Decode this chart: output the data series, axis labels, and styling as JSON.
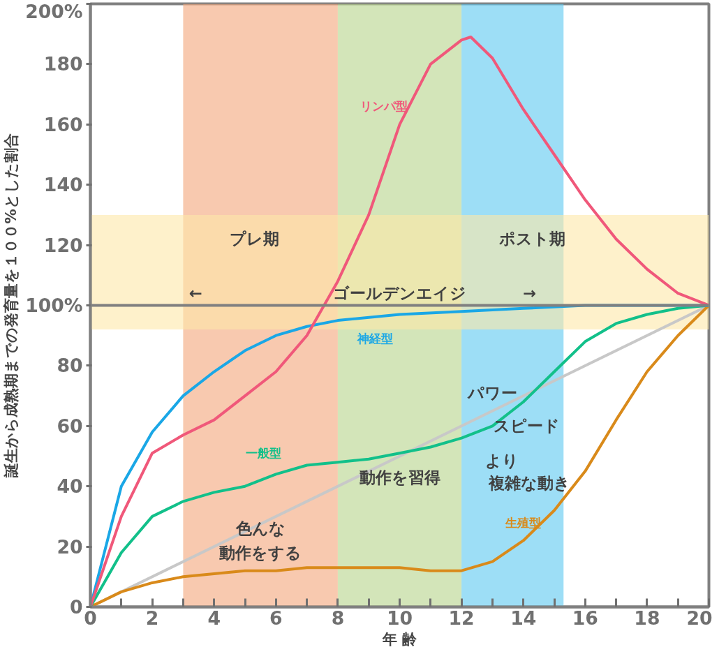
{
  "chart_data": {
    "type": "line",
    "xlabel": "年 齢",
    "ylabel": "誕生から成熟期までの発育量を１００%とした割合",
    "xlim": [
      0,
      20
    ],
    "ylim": [
      0,
      200
    ],
    "xticks": [
      0,
      {
        "value": 1,
        "label": null
      },
      2,
      {
        "value": 3,
        "label": null
      },
      4,
      {
        "value": 5,
        "label": null
      },
      6,
      {
        "value": 7,
        "label": null
      },
      8,
      {
        "value": 9,
        "label": null
      },
      10,
      {
        "value": 11,
        "label": null
      },
      12,
      {
        "value": 13,
        "label": null
      },
      14,
      {
        "value": 15,
        "label": null
      },
      16,
      {
        "value": 17,
        "label": null
      },
      18,
      {
        "value": 19,
        "label": null
      },
      20
    ],
    "yticks": [
      0,
      20,
      40,
      60,
      80,
      {
        "value": 100,
        "label": "100%"
      },
      120,
      140,
      160,
      180,
      {
        "value": 200,
        "label": "200%"
      }
    ],
    "grid": false,
    "legend": false,
    "marker": "none",
    "line_style": "solid",
    "series": [
      {
        "color": "#c8c8c8",
        "x": [
          0,
          20
        ],
        "values": [
          0,
          100
        ]
      },
      {
        "name": "生殖型",
        "color": "#d98a1a",
        "x": [
          0,
          1,
          2,
          3,
          4,
          5,
          6,
          7,
          8,
          9,
          10,
          11,
          12,
          13,
          14,
          15,
          16,
          17,
          18,
          19,
          20
        ],
        "values": [
          0,
          5,
          8,
          10,
          11,
          12,
          12,
          13,
          13,
          13,
          13,
          12,
          12,
          15,
          22,
          32,
          45,
          62,
          78,
          90,
          100
        ]
      },
      {
        "name": "一般型",
        "color": "#12c08a",
        "x": [
          0,
          1,
          2,
          3,
          4,
          5,
          6,
          7,
          8,
          9,
          10,
          11,
          12,
          13,
          14,
          15,
          16,
          17,
          18,
          19,
          20
        ],
        "values": [
          0,
          18,
          30,
          35,
          38,
          40,
          44,
          47,
          48,
          49,
          51,
          53,
          56,
          60,
          68,
          78,
          88,
          94,
          97,
          99,
          100
        ]
      },
      {
        "name": "神経型",
        "color": "#1aa7e6",
        "x": [
          0,
          1,
          2,
          3,
          4,
          5,
          6,
          7,
          8,
          10,
          12,
          14,
          16,
          18,
          20
        ],
        "values": [
          0,
          40,
          58,
          70,
          78,
          85,
          90,
          93,
          95,
          97,
          98,
          99,
          100,
          100,
          100
        ]
      },
      {
        "name": "リンパ型",
        "color": "#f0587a",
        "x": [
          0,
          1,
          2,
          3,
          4,
          5,
          6,
          7,
          8,
          9,
          10,
          11,
          12,
          12.3,
          13,
          14,
          15,
          16,
          17,
          18,
          19,
          20
        ],
        "values": [
          0,
          30,
          51,
          57,
          62,
          70,
          78,
          90,
          108,
          130,
          160,
          180,
          188,
          189,
          182,
          165,
          150,
          135,
          122,
          112,
          104,
          100
        ]
      }
    ],
    "ref_lines": [
      {
        "axis": "y",
        "value": 100,
        "color": "#808080"
      }
    ],
    "bands": [
      {
        "axis": "x",
        "from": 3,
        "to": 8,
        "color": "#f4a57a"
      },
      {
        "axis": "x",
        "from": 8,
        "to": 12,
        "color": "#b5d38a"
      },
      {
        "axis": "x",
        "from": 12,
        "to": 15.3,
        "color": "#5cc8f0"
      },
      {
        "axis": "y",
        "from": 92,
        "to": 130,
        "color": "#fde7a8"
      }
    ],
    "annotations": [
      "プレ期",
      "ポスト期",
      "←",
      "ゴールデンエイジ",
      "→",
      "色んな",
      "動作をする",
      "動作を習得",
      "パワー",
      "スピード",
      "より",
      "複雑な動き"
    ]
  }
}
